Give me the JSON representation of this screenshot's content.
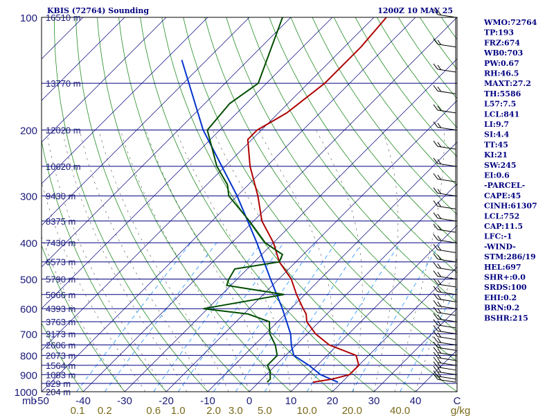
{
  "header": {
    "station": "KBIS (72764) Sounding",
    "time": "1200Z 10 MAY 25"
  },
  "indices": [
    "WMO:72764",
    "TP:193",
    "FRZ:674",
    "WB0:703",
    "PW:0.67",
    "RH:46.5",
    "MAXT:27.2",
    "TH:5586",
    "L57:7.5",
    "LCL:841",
    "LI:9.7",
    "SI:4.4",
    "TT:45",
    "KI:21",
    "SW:245",
    "EI:0.6",
    "-PARCEL-",
    "CAPE:45",
    "CINH:61307",
    "LCL:752",
    "CAP:11.5",
    "LFC:-1",
    "-WIND-",
    "STM:286/19",
    "HEL:697",
    "SHR+:0.0",
    "SRDS:100",
    "EHI:0.2",
    "BRN:0.2",
    "BSHR:215"
  ],
  "axis": {
    "p_unit": "mb",
    "w_unit": "g/kg"
  },
  "colors": {
    "isobar": "#000080",
    "isotherm": "#000080",
    "dry_adiabat": "#228b22",
    "mixing_ratio": "#1e90ff",
    "moist_adiabat": "#555555",
    "temperature": "#b00000",
    "dewpoint": "#004d00",
    "parcel": "#0033cc",
    "wind": "#000000"
  },
  "chart_data": {
    "type": "skew-t log-p sounding",
    "pressure_ticks": [
      "100",
      "200",
      "300",
      "400",
      "500",
      "600",
      "700",
      "800",
      "900",
      "1000"
    ],
    "temperature_ticks": [
      "-50",
      "-40",
      "-30",
      "-20",
      "-10",
      "0",
      "10",
      "20",
      "30",
      "40",
      "C"
    ],
    "mixing_ratio_ticks": [
      "0.1",
      "0.2",
      "0.6",
      "1.0",
      "2.0",
      "3.0",
      "5.0",
      "10.0",
      "20.0",
      "40.0"
    ],
    "mixing_ratio_values": [
      0.1,
      0.2,
      0.6,
      1.0,
      2.0,
      3.0,
      5.0,
      10.0,
      20.0,
      40.0
    ],
    "height_labels": [
      {
        "p": 100,
        "label": "16510 m"
      },
      {
        "p": 150,
        "label": "13770 m"
      },
      {
        "p": 200,
        "label": "12020 m"
      },
      {
        "p": 250,
        "label": "10620 m"
      },
      {
        "p": 300,
        "label": "9430 m"
      },
      {
        "p": 350,
        "label": "8375 m"
      },
      {
        "p": 400,
        "label": "7430 m"
      },
      {
        "p": 450,
        "label": "6573 m"
      },
      {
        "p": 500,
        "label": "5790 m"
      },
      {
        "p": 550,
        "label": "5066 m"
      },
      {
        "p": 600,
        "label": "4393 m"
      },
      {
        "p": 650,
        "label": "3763 m"
      },
      {
        "p": 700,
        "label": "3173 m"
      },
      {
        "p": 750,
        "label": "2606 m"
      },
      {
        "p": 800,
        "label": "2073 m"
      },
      {
        "p": 850,
        "label": "1564 m"
      },
      {
        "p": 900,
        "label": "1083 m"
      },
      {
        "p": 950,
        "label": "629 m"
      },
      {
        "p": 1000,
        "label": "204 m"
      }
    ],
    "p_range": [
      100,
      1000
    ],
    "t_range_at_base": [
      -50,
      50
    ],
    "temperature": [
      {
        "p": 943,
        "t": 13
      },
      {
        "p": 925,
        "t": 17
      },
      {
        "p": 900,
        "t": 20
      },
      {
        "p": 850,
        "t": 20
      },
      {
        "p": 800,
        "t": 17
      },
      {
        "p": 750,
        "t": 8
      },
      {
        "p": 700,
        "t": 2
      },
      {
        "p": 650,
        "t": -3
      },
      {
        "p": 620,
        "t": -5
      },
      {
        "p": 600,
        "t": -7
      },
      {
        "p": 550,
        "t": -12
      },
      {
        "p": 500,
        "t": -17
      },
      {
        "p": 450,
        "t": -24
      },
      {
        "p": 400,
        "t": -30
      },
      {
        "p": 350,
        "t": -38
      },
      {
        "p": 300,
        "t": -45
      },
      {
        "p": 250,
        "t": -54
      },
      {
        "p": 212,
        "t": -61
      },
      {
        "p": 200,
        "t": -61
      },
      {
        "p": 180,
        "t": -58
      },
      {
        "p": 150,
        "t": -56
      },
      {
        "p": 120,
        "t": -56
      },
      {
        "p": 100,
        "t": -57
      }
    ],
    "dewpoint": [
      {
        "p": 943,
        "t": 2
      },
      {
        "p": 925,
        "t": 2
      },
      {
        "p": 880,
        "t": 0
      },
      {
        "p": 850,
        "t": -2
      },
      {
        "p": 800,
        "t": -2
      },
      {
        "p": 750,
        "t": -5
      },
      {
        "p": 700,
        "t": -9
      },
      {
        "p": 650,
        "t": -12
      },
      {
        "p": 620,
        "t": -19
      },
      {
        "p": 600,
        "t": -31
      },
      {
        "p": 550,
        "t": -15
      },
      {
        "p": 520,
        "t": -31
      },
      {
        "p": 500,
        "t": -32
      },
      {
        "p": 470,
        "t": -33
      },
      {
        "p": 450,
        "t": -24
      },
      {
        "p": 430,
        "t": -25
      },
      {
        "p": 400,
        "t": -32
      },
      {
        "p": 350,
        "t": -41
      },
      {
        "p": 300,
        "t": -52
      },
      {
        "p": 280,
        "t": -55
      },
      {
        "p": 250,
        "t": -62
      },
      {
        "p": 200,
        "t": -73
      },
      {
        "p": 170,
        "t": -74
      },
      {
        "p": 150,
        "t": -72
      },
      {
        "p": 100,
        "t": -82
      }
    ],
    "parcel": [
      {
        "p": 943,
        "t": 19
      },
      {
        "p": 900,
        "t": 13
      },
      {
        "p": 850,
        "t": 8
      },
      {
        "p": 800,
        "t": 2
      },
      {
        "p": 752,
        "t": -1
      },
      {
        "p": 700,
        "t": -4
      },
      {
        "p": 600,
        "t": -12
      },
      {
        "p": 500,
        "t": -22
      },
      {
        "p": 400,
        "t": -34
      },
      {
        "p": 300,
        "t": -50
      },
      {
        "p": 200,
        "t": -74
      },
      {
        "p": 130,
        "t": -96
      }
    ],
    "wind_levels": [
      {
        "p": 943
      },
      {
        "p": 925
      },
      {
        "p": 900
      },
      {
        "p": 875
      },
      {
        "p": 850
      },
      {
        "p": 825
      },
      {
        "p": 800
      },
      {
        "p": 775
      },
      {
        "p": 750
      },
      {
        "p": 725
      },
      {
        "p": 700
      },
      {
        "p": 675
      },
      {
        "p": 650
      },
      {
        "p": 625
      },
      {
        "p": 600
      },
      {
        "p": 575
      },
      {
        "p": 550
      },
      {
        "p": 525
      },
      {
        "p": 500
      },
      {
        "p": 475
      },
      {
        "p": 450
      },
      {
        "p": 425
      },
      {
        "p": 400
      },
      {
        "p": 375
      },
      {
        "p": 350
      },
      {
        "p": 325
      },
      {
        "p": 300
      },
      {
        "p": 275
      },
      {
        "p": 250
      },
      {
        "p": 225
      },
      {
        "p": 200
      },
      {
        "p": 180
      },
      {
        "p": 160
      },
      {
        "p": 140
      },
      {
        "p": 120
      },
      {
        "p": 100
      }
    ]
  }
}
